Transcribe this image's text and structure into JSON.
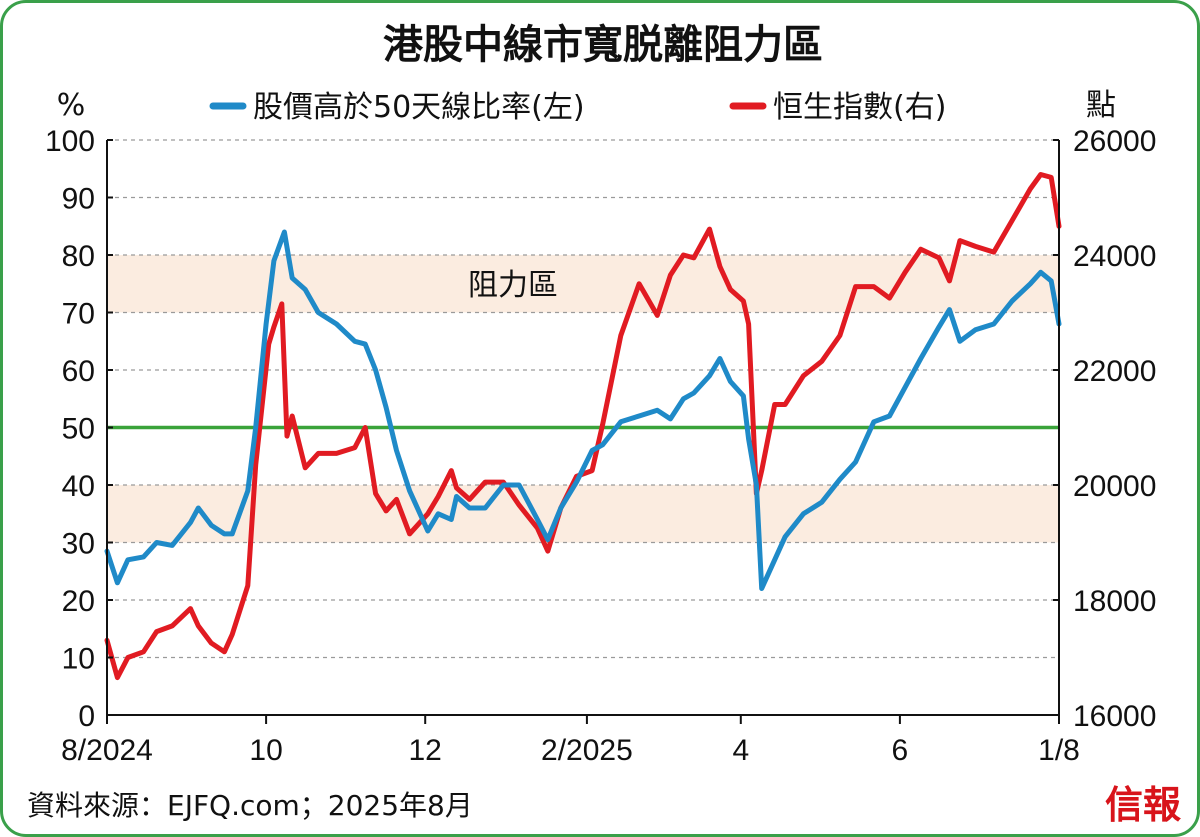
{
  "title": "港股中線市寬脱離阻力區",
  "source": "資料來源：EJFQ.com；2025年8月",
  "logo": "信報",
  "colors": {
    "breadth": "#1f8ac8",
    "hsi": "#e11b22",
    "line50": "#3aa33a",
    "band": "#fbece0",
    "grid": "#9a9a9a",
    "border": "#3aa04a"
  },
  "chart_data": {
    "type": "line",
    "left_axis": {
      "unit": "%",
      "ylim": [
        0,
        100
      ],
      "ticks": [
        0,
        10,
        20,
        30,
        40,
        50,
        60,
        70,
        80,
        90,
        100
      ]
    },
    "right_axis": {
      "unit": "點",
      "ylim": [
        16000,
        26000
      ],
      "ticks": [
        16000,
        18000,
        20000,
        22000,
        24000,
        26000
      ]
    },
    "x_axis": {
      "range": [
        "2024-08-01",
        "2025-08-01"
      ],
      "ticks": [
        {
          "label": "8/2024",
          "date": "2024-08-01"
        },
        {
          "label": "10",
          "date": "2024-10-01"
        },
        {
          "label": "12",
          "date": "2024-12-01"
        },
        {
          "label": "2/2025",
          "date": "2025-02-01"
        },
        {
          "label": "4",
          "date": "2025-04-01"
        },
        {
          "label": "6",
          "date": "2025-06-01"
        },
        {
          "label": "1/8",
          "date": "2025-08-01"
        }
      ]
    },
    "grid": "dashed horizontal",
    "legend_position": "top-center",
    "reference_line": {
      "value": 50,
      "axis": "left"
    },
    "resistance_bands": [
      {
        "label": "阻力區",
        "from": 70,
        "to": 80,
        "axis": "left",
        "show_label": true
      },
      {
        "label": "",
        "from": 30,
        "to": 40,
        "axis": "left",
        "show_label": false
      }
    ],
    "series": [
      {
        "name": "股價高於50天線比率(左)",
        "axis": "left",
        "color": "#1f8ac8",
        "points": [
          [
            "2024-08-01",
            28.5
          ],
          [
            "2024-08-05",
            23
          ],
          [
            "2024-08-09",
            27
          ],
          [
            "2024-08-15",
            27.5
          ],
          [
            "2024-08-20",
            30
          ],
          [
            "2024-08-26",
            29.5
          ],
          [
            "2024-09-02",
            33.5
          ],
          [
            "2024-09-05",
            36
          ],
          [
            "2024-09-10",
            33
          ],
          [
            "2024-09-15",
            31.5
          ],
          [
            "2024-09-18",
            31.5
          ],
          [
            "2024-09-24",
            39
          ],
          [
            "2024-09-27",
            50
          ],
          [
            "2024-10-01",
            68
          ],
          [
            "2024-10-04",
            79
          ],
          [
            "2024-10-08",
            84
          ],
          [
            "2024-10-11",
            76
          ],
          [
            "2024-10-16",
            74
          ],
          [
            "2024-10-21",
            70
          ],
          [
            "2024-10-28",
            68
          ],
          [
            "2024-11-04",
            65
          ],
          [
            "2024-11-08",
            64.5
          ],
          [
            "2024-11-12",
            60
          ],
          [
            "2024-11-16",
            53.5
          ],
          [
            "2024-11-20",
            46
          ],
          [
            "2024-11-25",
            39
          ],
          [
            "2024-12-02",
            32
          ],
          [
            "2024-12-06",
            35
          ],
          [
            "2024-12-11",
            34
          ],
          [
            "2024-12-13",
            38
          ],
          [
            "2024-12-18",
            36
          ],
          [
            "2024-12-24",
            36
          ],
          [
            "2024-12-31",
            40
          ],
          [
            "2025-01-06",
            40
          ],
          [
            "2025-01-13",
            34
          ],
          [
            "2025-01-17",
            30.5
          ],
          [
            "2025-01-22",
            36
          ],
          [
            "2025-01-28",
            40.5
          ],
          [
            "2025-02-03",
            46
          ],
          [
            "2025-02-07",
            47
          ],
          [
            "2025-02-14",
            51
          ],
          [
            "2025-02-21",
            52
          ],
          [
            "2025-02-28",
            53
          ],
          [
            "2025-03-05",
            51.5
          ],
          [
            "2025-03-10",
            55
          ],
          [
            "2025-03-14",
            56
          ],
          [
            "2025-03-20",
            59
          ],
          [
            "2025-03-24",
            62
          ],
          [
            "2025-03-28",
            58
          ],
          [
            "2025-04-02",
            55.5
          ],
          [
            "2025-04-04",
            48
          ],
          [
            "2025-04-07",
            40
          ],
          [
            "2025-04-09",
            22
          ],
          [
            "2025-04-14",
            27
          ],
          [
            "2025-04-18",
            31
          ],
          [
            "2025-04-25",
            35
          ],
          [
            "2025-05-02",
            37
          ],
          [
            "2025-05-09",
            41
          ],
          [
            "2025-05-15",
            44
          ],
          [
            "2025-05-22",
            51
          ],
          [
            "2025-05-28",
            52
          ],
          [
            "2025-06-03",
            57
          ],
          [
            "2025-06-09",
            62
          ],
          [
            "2025-06-16",
            67.5
          ],
          [
            "2025-06-20",
            70.5
          ],
          [
            "2025-06-24",
            65
          ],
          [
            "2025-06-30",
            67
          ],
          [
            "2025-07-07",
            68
          ],
          [
            "2025-07-14",
            72
          ],
          [
            "2025-07-21",
            75
          ],
          [
            "2025-07-25",
            77
          ],
          [
            "2025-07-29",
            75.5
          ],
          [
            "2025-08-01",
            68
          ]
        ]
      },
      {
        "name": "恒生指數(右)",
        "axis": "right",
        "color": "#e11b22",
        "points": [
          [
            "2024-08-01",
            17300
          ],
          [
            "2024-08-05",
            16650
          ],
          [
            "2024-08-09",
            17000
          ],
          [
            "2024-08-15",
            17100
          ],
          [
            "2024-08-20",
            17450
          ],
          [
            "2024-08-26",
            17550
          ],
          [
            "2024-09-02",
            17850
          ],
          [
            "2024-09-05",
            17550
          ],
          [
            "2024-09-10",
            17250
          ],
          [
            "2024-09-15",
            17100
          ],
          [
            "2024-09-18",
            17400
          ],
          [
            "2024-09-24",
            18250
          ],
          [
            "2024-09-27",
            20350
          ],
          [
            "2024-10-02",
            22450
          ],
          [
            "2024-10-04",
            22750
          ],
          [
            "2024-10-07",
            23150
          ],
          [
            "2024-10-09",
            20850
          ],
          [
            "2024-10-11",
            21200
          ],
          [
            "2024-10-16",
            20300
          ],
          [
            "2024-10-21",
            20550
          ],
          [
            "2024-10-28",
            20550
          ],
          [
            "2024-11-04",
            20650
          ],
          [
            "2024-11-08",
            21000
          ],
          [
            "2024-11-12",
            19850
          ],
          [
            "2024-11-16",
            19550
          ],
          [
            "2024-11-20",
            19750
          ],
          [
            "2024-11-25",
            19150
          ],
          [
            "2024-12-02",
            19500
          ],
          [
            "2024-12-06",
            19800
          ],
          [
            "2024-12-11",
            20250
          ],
          [
            "2024-12-13",
            19950
          ],
          [
            "2024-12-18",
            19750
          ],
          [
            "2024-12-24",
            20050
          ],
          [
            "2024-12-31",
            20050
          ],
          [
            "2025-01-06",
            19650
          ],
          [
            "2025-01-13",
            19250
          ],
          [
            "2025-01-17",
            18850
          ],
          [
            "2025-01-22",
            19600
          ],
          [
            "2025-01-28",
            20150
          ],
          [
            "2025-02-03",
            20250
          ],
          [
            "2025-02-07",
            21050
          ],
          [
            "2025-02-14",
            22600
          ],
          [
            "2025-02-21",
            23500
          ],
          [
            "2025-02-28",
            22950
          ],
          [
            "2025-03-05",
            23650
          ],
          [
            "2025-03-10",
            24000
          ],
          [
            "2025-03-14",
            23950
          ],
          [
            "2025-03-20",
            24450
          ],
          [
            "2025-03-24",
            23800
          ],
          [
            "2025-03-28",
            23400
          ],
          [
            "2025-04-02",
            23200
          ],
          [
            "2025-04-04",
            22800
          ],
          [
            "2025-04-07",
            19850
          ],
          [
            "2025-04-09",
            20250
          ],
          [
            "2025-04-14",
            21400
          ],
          [
            "2025-04-18",
            21400
          ],
          [
            "2025-04-25",
            21900
          ],
          [
            "2025-05-02",
            22150
          ],
          [
            "2025-05-09",
            22600
          ],
          [
            "2025-05-15",
            23450
          ],
          [
            "2025-05-22",
            23450
          ],
          [
            "2025-05-28",
            23250
          ],
          [
            "2025-06-03",
            23700
          ],
          [
            "2025-06-09",
            24100
          ],
          [
            "2025-06-16",
            23950
          ],
          [
            "2025-06-20",
            23550
          ],
          [
            "2025-06-24",
            24250
          ],
          [
            "2025-06-30",
            24150
          ],
          [
            "2025-07-07",
            24050
          ],
          [
            "2025-07-14",
            24600
          ],
          [
            "2025-07-21",
            25150
          ],
          [
            "2025-07-25",
            25400
          ],
          [
            "2025-07-29",
            25350
          ],
          [
            "2025-08-01",
            24500
          ]
        ]
      }
    ]
  }
}
